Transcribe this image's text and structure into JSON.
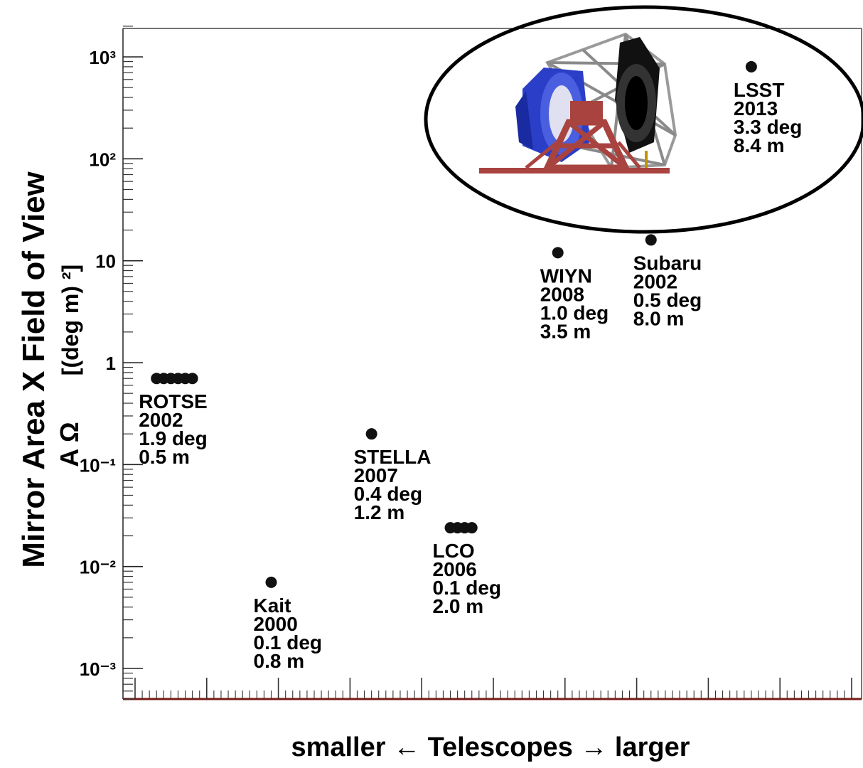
{
  "chart_data": {
    "type": "scatter",
    "title": "",
    "ylabel_main": "Mirror Area X Field of View",
    "ylabel_sub": "[(deg m) ²]",
    "ylabel_symbol": "A Ω",
    "xlabel": "smaller ← Telescopes → larger",
    "yscale": "log",
    "ylim": [
      0.0005,
      2000
    ],
    "xlim": [
      0,
      10
    ],
    "y_ticks": [
      {
        "value": 1000,
        "label": "10³"
      },
      {
        "value": 100,
        "label": "10²"
      },
      {
        "value": 10,
        "label": "10"
      },
      {
        "value": 1,
        "label": "1"
      },
      {
        "value": 0.1,
        "label": "10⁻¹"
      },
      {
        "value": 0.01,
        "label": "10⁻²"
      },
      {
        "value": 0.001,
        "label": "10⁻³"
      }
    ],
    "points": [
      {
        "name": "ROTSE",
        "year": "2002",
        "fov": "1.9 deg",
        "mirror": "0.5 m",
        "x": [
          0.3,
          0.4,
          0.5,
          0.6,
          0.7,
          0.8
        ],
        "y": 0.7
      },
      {
        "name": "Kait",
        "year": "2000",
        "fov": "0.1 deg",
        "mirror": "0.8 m",
        "x": [
          1.9
        ],
        "y": 0.007
      },
      {
        "name": "STELLA",
        "year": "2007",
        "fov": "0.4 deg",
        "mirror": "1.2 m",
        "x": [
          3.3
        ],
        "y": 0.2
      },
      {
        "name": "LCO",
        "year": "2006",
        "fov": "0.1 deg",
        "mirror": "2.0 m",
        "x": [
          4.4,
          4.5,
          4.6,
          4.7
        ],
        "y": 0.024
      },
      {
        "name": "WIYN",
        "year": "2008",
        "fov": "1.0 deg",
        "mirror": "3.5 m",
        "x": [
          5.9
        ],
        "y": 12
      },
      {
        "name": "Subaru",
        "year": "2002",
        "fov": "0.5 deg",
        "mirror": "8.0 m",
        "x": [
          7.2
        ],
        "y": 16
      },
      {
        "name": "LSST",
        "year": "2013",
        "fov": "3.3 deg",
        "mirror": "8.4 m",
        "x": [
          8.6
        ],
        "y": 800
      }
    ],
    "grid": false,
    "colors": {
      "point": "#111111",
      "axis_bottom": "#7a1a14",
      "axis_right": "#b02020",
      "telescope_blue": "#2a3ec8",
      "telescope_red": "#a8433f"
    }
  }
}
